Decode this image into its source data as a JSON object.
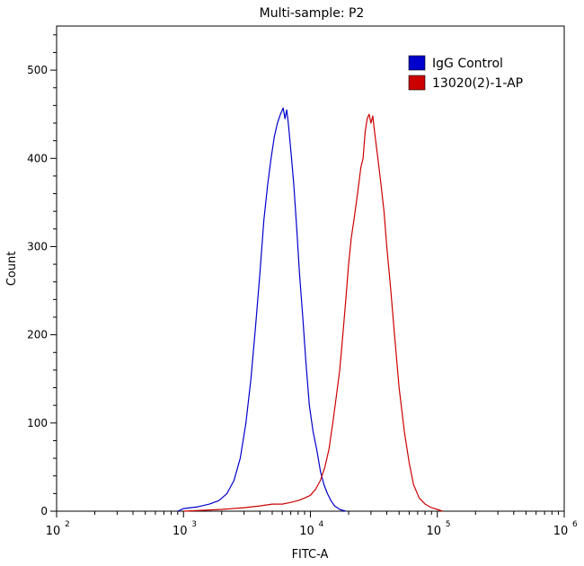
{
  "chart_data": {
    "type": "line",
    "title": "Multi-sample: P2",
    "xlabel": "FITC-A",
    "ylabel": "Count",
    "xscale": "log",
    "xlim": [
      100,
      1000000
    ],
    "ylim": [
      0,
      550
    ],
    "x_ticks": [
      {
        "base": "10",
        "exp": "2",
        "value": 100
      },
      {
        "base": "10",
        "exp": "3",
        "value": 1000
      },
      {
        "base": "10",
        "exp": "4",
        "value": 10000
      },
      {
        "base": "10",
        "exp": "5",
        "value": 100000
      },
      {
        "base": "10",
        "exp": "6",
        "value": 1000000
      }
    ],
    "y_ticks": [
      0,
      100,
      200,
      300,
      400,
      500
    ],
    "grid": false,
    "legend_position": "top-right",
    "series": [
      {
        "name": "IgG Control",
        "color": "#0000cc",
        "x": [
          900,
          1000,
          1300,
          1600,
          1900,
          2200,
          2500,
          2800,
          3100,
          3400,
          3700,
          4000,
          4300,
          4600,
          4900,
          5200,
          5500,
          5800,
          6100,
          6300,
          6500,
          6700,
          6900,
          7100,
          7400,
          7800,
          8200,
          8700,
          9200,
          9800,
          10500,
          11200,
          12000,
          12800,
          13600,
          14500,
          15500,
          17000,
          19000
        ],
        "y": [
          0,
          3,
          5,
          8,
          12,
          20,
          35,
          60,
          100,
          150,
          210,
          270,
          330,
          370,
          400,
          425,
          440,
          450,
          457,
          445,
          455,
          440,
          420,
          400,
          370,
          320,
          270,
          220,
          170,
          120,
          90,
          70,
          45,
          30,
          20,
          12,
          6,
          2,
          0
        ]
      },
      {
        "name": "13020(2)-1-AP",
        "color": "#cc0000",
        "x": [
          1000,
          2000,
          3000,
          4000,
          5000,
          6000,
          7000,
          8000,
          9000,
          10000,
          11000,
          12000,
          13000,
          14000,
          15000,
          16000,
          17000,
          18000,
          19000,
          20000,
          21000,
          22000,
          23000,
          24000,
          25000,
          26000,
          27000,
          28000,
          29000,
          30000,
          31000,
          32000,
          34000,
          36000,
          38000,
          40000,
          43000,
          46000,
          50000,
          55000,
          60000,
          65000,
          72000,
          80000,
          90000,
          100000,
          110000
        ],
        "y": [
          0,
          2,
          4,
          6,
          8,
          8,
          10,
          12,
          15,
          18,
          25,
          35,
          50,
          70,
          100,
          130,
          160,
          200,
          240,
          280,
          310,
          330,
          350,
          370,
          390,
          400,
          430,
          445,
          450,
          440,
          448,
          430,
          400,
          370,
          340,
          300,
          250,
          200,
          140,
          90,
          55,
          30,
          15,
          8,
          4,
          2,
          0
        ]
      }
    ]
  }
}
